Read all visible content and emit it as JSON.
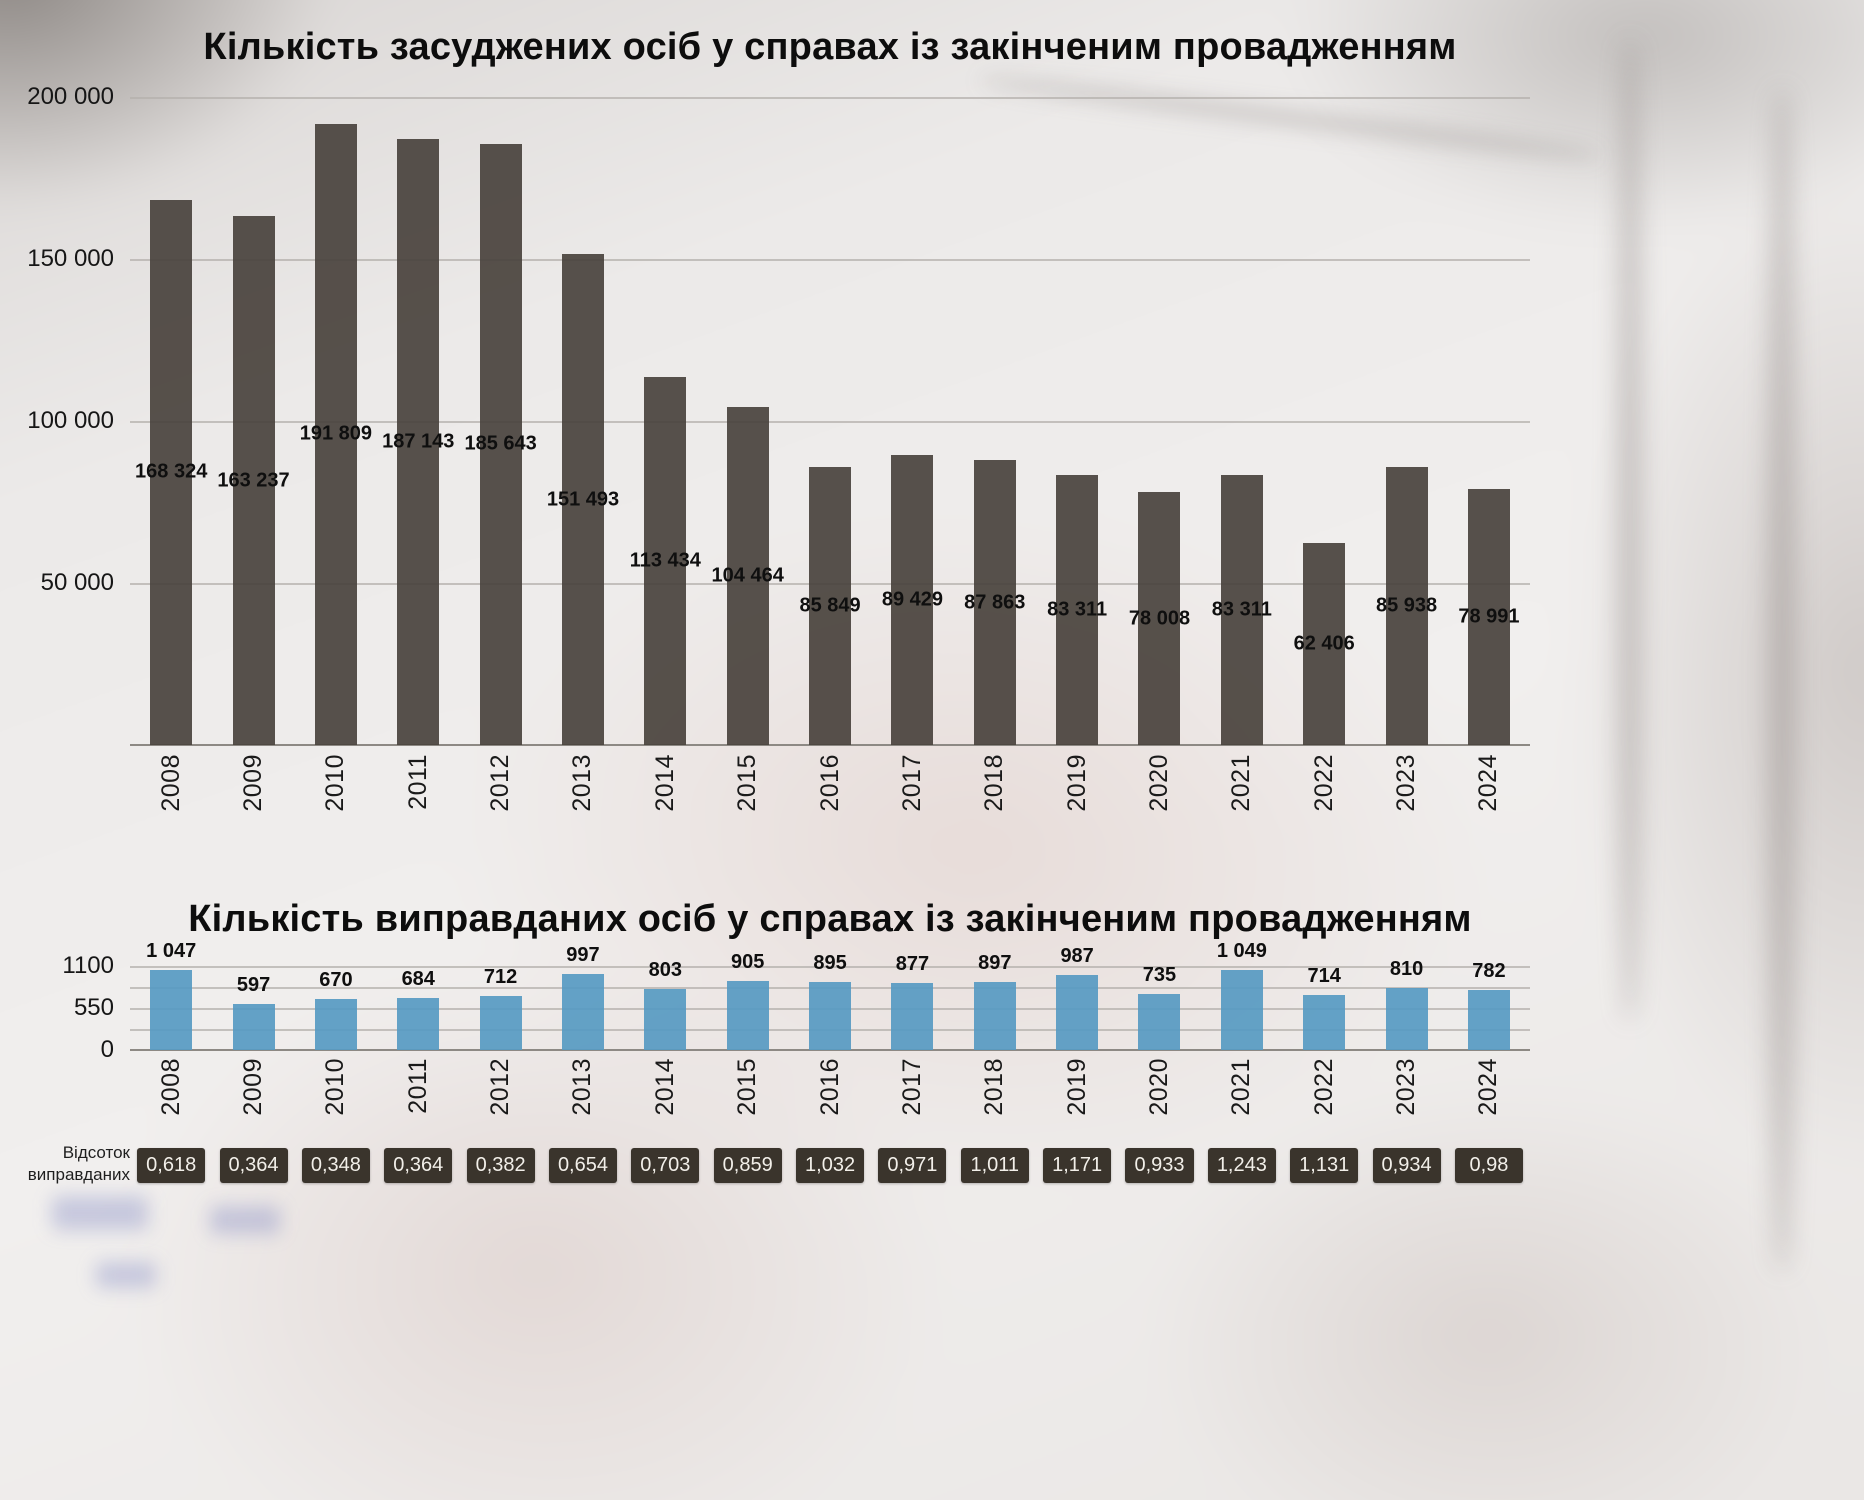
{
  "chart_data": [
    {
      "type": "bar",
      "title": "Кількість засуджених осіб у справах із закінченим провадженням",
      "categories": [
        "2008",
        "2009",
        "2010",
        "2011",
        "2012",
        "2013",
        "2014",
        "2015",
        "2016",
        "2017",
        "2018",
        "2019",
        "2020",
        "2021",
        "2022",
        "2023",
        "2024"
      ],
      "values": [
        168324,
        163237,
        191809,
        187143,
        185643,
        151493,
        113434,
        104464,
        85849,
        89429,
        87863,
        83311,
        78008,
        83311,
        62406,
        85938,
        78991
      ],
      "labels": [
        "168 324",
        "163 237",
        "191 809",
        "187 143",
        "185 643",
        "151 493",
        "113 434",
        "104 464",
        "85 849",
        "89 429",
        "87 863",
        "83 311",
        "78 008",
        "83 311",
        "62 406",
        "85 938",
        "78 991"
      ],
      "ylim": [
        0,
        200000
      ],
      "yticks": [
        "200 000",
        "150 000",
        "100 000",
        "50 000"
      ],
      "bar_color": "#49423d",
      "grid": true,
      "legend": "none"
    },
    {
      "type": "bar",
      "title": "Кількість виправданих осіб у справах із закінченим провадженням",
      "categories": [
        "2008",
        "2009",
        "2010",
        "2011",
        "2012",
        "2013",
        "2014",
        "2015",
        "2016",
        "2017",
        "2018",
        "2019",
        "2020",
        "2021",
        "2022",
        "2023",
        "2024"
      ],
      "values": [
        1047,
        597,
        670,
        684,
        712,
        997,
        803,
        905,
        895,
        877,
        897,
        987,
        735,
        1049,
        714,
        810,
        782
      ],
      "labels": [
        "1 047",
        "597",
        "670",
        "684",
        "712",
        "997",
        "803",
        "905",
        "895",
        "877",
        "897",
        "987",
        "735",
        "1 049",
        "714",
        "810",
        "782"
      ],
      "ylim": [
        0,
        1100
      ],
      "yticks": [
        "1100",
        "550",
        "0"
      ],
      "bar_color": "#579ac2",
      "grid": true,
      "legend": "none"
    }
  ],
  "percent_row": {
    "label_line1": "Відсоток",
    "label_line2": "виправданих",
    "values": [
      "0,618",
      "0,364",
      "0,348",
      "0,364",
      "0,382",
      "0,654",
      "0,703",
      "0,859",
      "1,032",
      "0,971",
      "1,011",
      "1,171",
      "0,933",
      "1,243",
      "1,131",
      "0,934",
      "0,98"
    ],
    "badge_background": "#3a342c",
    "badge_text_color": "#f2efe9"
  }
}
